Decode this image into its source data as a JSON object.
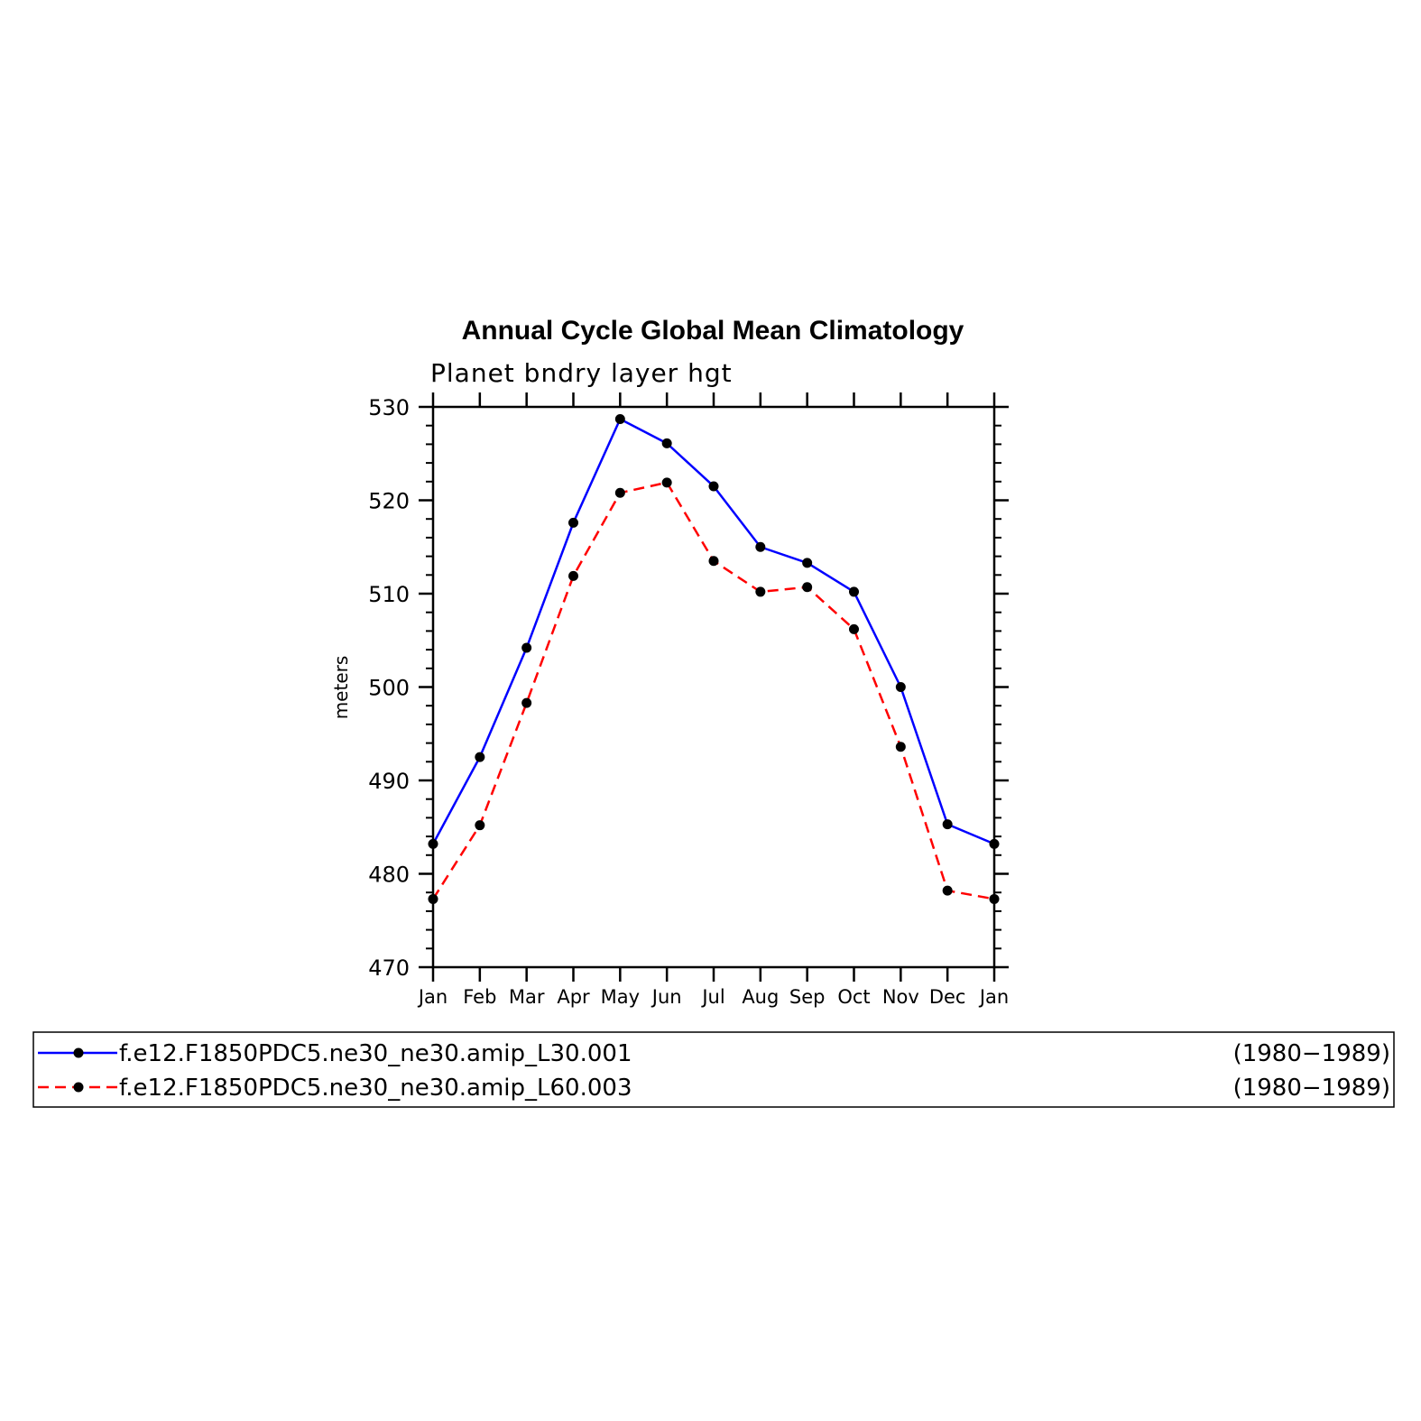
{
  "chart_data": {
    "type": "line",
    "title": "Annual Cycle Global Mean Climatology",
    "subtitle": "Planet bndry layer hgt",
    "xlabel": "",
    "ylabel": "meters",
    "categories": [
      "Jan",
      "Feb",
      "Mar",
      "Apr",
      "May",
      "Jun",
      "Jul",
      "Aug",
      "Sep",
      "Oct",
      "Nov",
      "Dec",
      "Jan"
    ],
    "ylim": [
      470,
      530
    ],
    "yticks": [
      470,
      480,
      490,
      500,
      510,
      520,
      530
    ],
    "grid": false,
    "legend_position": "bottom",
    "series": [
      {
        "name": "f.e12.F1850PDC5.ne30_ne30.amip_L30.001",
        "period": "(1980−1989)",
        "color": "#0000ff",
        "dash": "solid",
        "values": [
          483.2,
          492.5,
          504.2,
          517.6,
          528.7,
          526.1,
          521.5,
          515.0,
          513.3,
          510.2,
          500.0,
          485.3,
          483.2
        ]
      },
      {
        "name": "f.e12.F1850PDC5.ne30_ne30.amip_L60.003",
        "period": "(1980−1989)",
        "color": "#ff0000",
        "dash": "dashed",
        "values": [
          477.3,
          485.2,
          498.3,
          511.9,
          520.8,
          521.9,
          513.5,
          510.2,
          510.7,
          506.2,
          493.6,
          478.2,
          477.3
        ]
      }
    ]
  }
}
